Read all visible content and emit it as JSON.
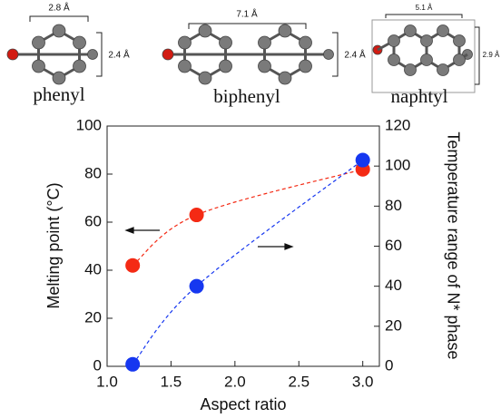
{
  "molecules": [
    {
      "name": "phenyl",
      "width_label": "2.8 Å",
      "height_label": "2.4 Å"
    },
    {
      "name": "biphenyl",
      "width_label": "7.1 Å",
      "height_label": "2.4 Å"
    },
    {
      "name": "naphtyl",
      "width_label": "5.1 Å",
      "height_label": "2.9 Å"
    }
  ],
  "chart_data": {
    "type": "line",
    "x_label": "Aspect ratio",
    "y_label": "Melting point (°C)",
    "y2_label": "Temperature range of N* phase",
    "x": [
      1.2,
      1.7,
      3.0
    ],
    "series": [
      {
        "color": "#f42a14",
        "values": [
          42,
          63,
          82
        ]
      },
      {
        "color": "#1637f0",
        "values": [
          1,
          40,
          103
        ],
        "axis": "y2"
      }
    ],
    "xlim": [
      1.0,
      3.13
    ],
    "xticks": [
      {
        "value": 1,
        "label": "1.0"
      },
      {
        "value": 1.5,
        "label": "1.5"
      },
      {
        "value": 2,
        "label": "2.0"
      },
      {
        "value": 2.5,
        "label": "2.5"
      },
      {
        "value": 3,
        "label": "3.0"
      }
    ],
    "ylim": [
      0,
      100
    ],
    "yticks": [
      0,
      20,
      40,
      60,
      80,
      100
    ],
    "y2lim": [
      0,
      120
    ],
    "y2ticks": [
      0,
      20,
      40,
      60,
      80,
      100,
      120
    ],
    "grid": false
  }
}
